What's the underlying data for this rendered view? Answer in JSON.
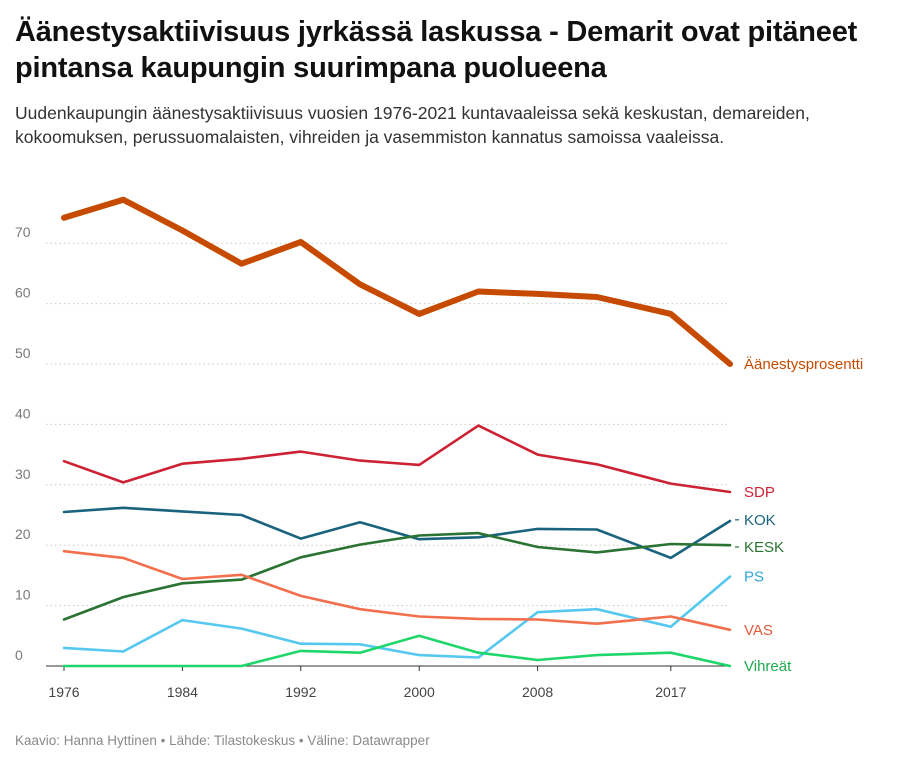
{
  "header": {
    "title": "Äänestysaktiivisuus jyrkässä laskussa - Demarit ovat pitäneet pintansa kaupungin suurimpana puolueena",
    "subtitle": "Uudenkaupungin äänestysaktiivisuus vuosien 1976-2021 kuntavaaleissa sekä keskustan, demareiden, kokoomuksen, perussuomalaisten, vihreiden ja vasemmiston kannatus samoissa vaaleissa."
  },
  "footer": {
    "text": "Kaavio: Hanna Hyttinen • Lähde: Tilastokeskus • Väline: Datawrapper"
  },
  "chart_data": {
    "type": "line",
    "x": [
      1976,
      1980,
      1984,
      1988,
      1992,
      1996,
      2000,
      2004,
      2008,
      2012,
      2017,
      2021
    ],
    "x_ticks": [
      "1976",
      "1984",
      "1992",
      "2000",
      "2008",
      "2017"
    ],
    "x_tick_values": [
      1976,
      1984,
      1992,
      2000,
      2008,
      2017
    ],
    "y_ticks": [
      "0",
      "10",
      "20",
      "30",
      "40",
      "50",
      "60",
      "70"
    ],
    "y_tick_values": [
      0,
      10,
      20,
      30,
      40,
      50,
      60,
      70
    ],
    "ylim": [
      0,
      78
    ],
    "grid": "horizontal dotted",
    "legend": "inline labels at right end of lines",
    "series": [
      {
        "name": "Äänestysprosentti",
        "color": "#c64b00",
        "width": 6,
        "values": [
          74.2,
          77.2,
          72.1,
          66.6,
          70.2,
          63.2,
          58.3,
          62.0,
          61.6,
          61.1,
          58.3,
          50.0
        ]
      },
      {
        "name": "SDP",
        "color": "#cc2233",
        "width": 2.6,
        "values": [
          33.9,
          30.4,
          33.5,
          34.3,
          35.5,
          34.0,
          33.3,
          39.8,
          35.0,
          33.4,
          30.2,
          28.8
        ]
      },
      {
        "name": "KOK",
        "color": "#1a637e",
        "width": 2.6,
        "values": [
          25.5,
          26.2,
          25.6,
          25.0,
          21.1,
          23.8,
          21.0,
          21.3,
          22.7,
          22.6,
          17.9,
          24.0
        ]
      },
      {
        "name": "KESK",
        "color": "#2a7332",
        "width": 2.6,
        "values": [
          7.7,
          11.4,
          13.7,
          14.3,
          18.0,
          20.1,
          21.6,
          22.0,
          19.7,
          18.8,
          20.2,
          20.0
        ]
      },
      {
        "name": "PS",
        "color": "#56c8f0",
        "width": 2.6,
        "values": [
          3.0,
          2.4,
          7.6,
          6.2,
          3.7,
          3.6,
          1.8,
          1.4,
          8.9,
          9.4,
          6.5,
          14.8
        ]
      },
      {
        "name": "VAS",
        "color": "#f26f4d",
        "width": 2.6,
        "values": [
          19.0,
          17.9,
          14.4,
          15.1,
          11.6,
          9.4,
          8.2,
          7.8,
          7.7,
          7.0,
          8.2,
          6.0
        ]
      },
      {
        "name": "Vihreät",
        "color": "#1ed66a",
        "width": 2.6,
        "values": [
          0,
          0,
          0,
          0,
          2.5,
          2.2,
          5.0,
          2.2,
          1.0,
          1.8,
          2.2,
          0
        ]
      }
    ],
    "labels": [
      {
        "text": "Äänestysprosentti",
        "color": "#c64b00",
        "y": 50.0
      },
      {
        "text": "SDP",
        "color": "#cc2233",
        "y": 28.8
      },
      {
        "text": "KOK",
        "color": "#1a637e",
        "y": 24.2
      },
      {
        "text": "KESK",
        "color": "#2a7332",
        "y": 19.7
      },
      {
        "text": "PS",
        "color": "#2ea6d6",
        "y": 14.8
      },
      {
        "text": "VAS",
        "color": "#e65a3a",
        "y": 6.0
      },
      {
        "text": "Vihreät",
        "color": "#1faa4e",
        "y": 0
      }
    ]
  }
}
